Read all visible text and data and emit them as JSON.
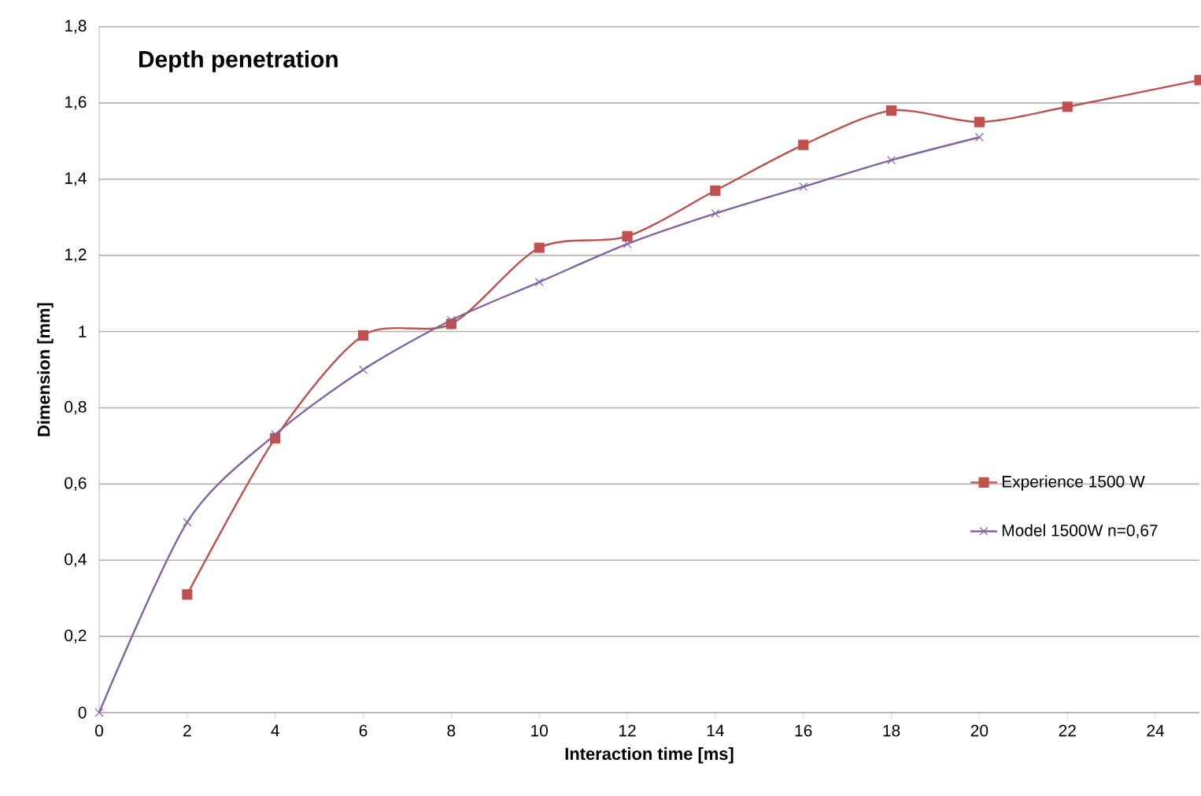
{
  "chart_data": {
    "type": "line",
    "title": "Depth penetration",
    "xlabel": "Interaction time [ms]",
    "ylabel": "Dimension [mm]",
    "xlim": [
      0,
      25
    ],
    "xticks": [
      0,
      2,
      4,
      6,
      8,
      10,
      12,
      14,
      16,
      18,
      20,
      22,
      24
    ],
    "ylim": [
      0,
      1.8
    ],
    "yticks": [
      0,
      {
        "value": 0.2,
        "label": "0,2"
      },
      {
        "value": 0.4,
        "label": "0,4"
      },
      {
        "value": 0.6,
        "label": "0,6"
      },
      {
        "value": 0.8,
        "label": "0,8"
      },
      1,
      {
        "value": 1.2,
        "label": "1,2"
      },
      {
        "value": 1.4,
        "label": "1,4"
      },
      {
        "value": 1.6,
        "label": "1,6"
      },
      {
        "value": 1.8,
        "label": "1,8"
      }
    ],
    "grid": "y",
    "legend": "right",
    "series": [
      {
        "name": "Experience 1500 W",
        "color": "#c0504d",
        "marker": "square",
        "x": [
          2,
          4,
          6,
          8,
          10,
          12,
          14,
          16,
          18,
          20,
          22,
          25
        ],
        "values": [
          0.31,
          0.72,
          0.99,
          1.02,
          1.22,
          1.25,
          1.37,
          1.49,
          1.58,
          1.55,
          1.59,
          1.66
        ]
      },
      {
        "name": "Model 1500W n=0,67",
        "color": "#8064a2",
        "marker": "cross",
        "x": [
          0,
          2,
          4,
          6,
          8,
          10,
          12,
          14,
          16,
          18,
          20
        ],
        "values": [
          0,
          0.5,
          0.73,
          0.9,
          1.03,
          1.13,
          1.23,
          1.31,
          1.38,
          1.45,
          1.51
        ]
      }
    ]
  }
}
